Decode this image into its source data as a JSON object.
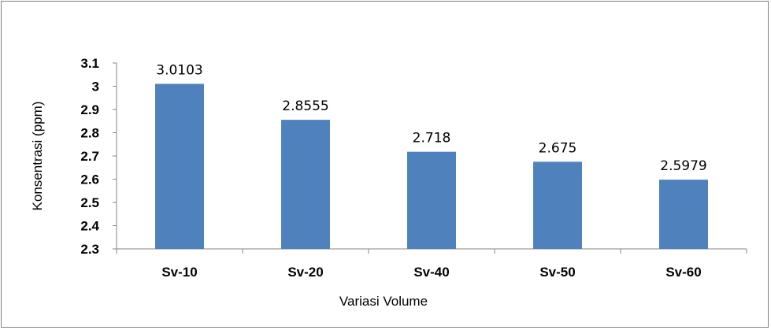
{
  "chart_data": {
    "type": "bar",
    "categories": [
      "Sv-10",
      "Sv-20",
      "Sv-40",
      "Sv-50",
      "Sv-60"
    ],
    "values": [
      3.0103,
      2.8555,
      2.718,
      2.675,
      2.5979
    ],
    "data_labels": [
      "3.0103",
      "2.8555",
      "2.718",
      "2.675",
      "2.5979"
    ],
    "xlabel": "Variasi Volume",
    "ylabel": "Konsentrasi (ppm)",
    "ylim": [
      2.3,
      3.1
    ],
    "yticks": [
      "2.3",
      "2.4",
      "2.5",
      "2.6",
      "2.7",
      "2.8",
      "2.9",
      "3",
      "3.1"
    ],
    "bar_color": "#4f81bd",
    "grid": false,
    "legend": "none"
  }
}
